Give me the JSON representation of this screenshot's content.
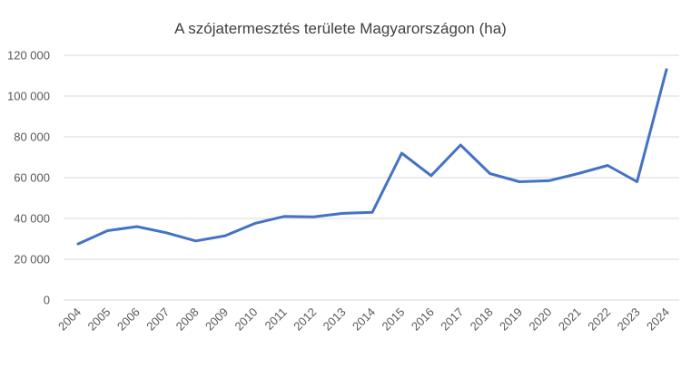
{
  "chart_data": {
    "type": "line",
    "title": "A szójatermesztés területe Magyarországon (ha)",
    "xlabel": "",
    "ylabel": "",
    "ylim": [
      0,
      120000
    ],
    "y_ticks": [
      "0",
      "20 000",
      "40 000",
      "60 000",
      "80 000",
      "100 000",
      "120 000"
    ],
    "y_tick_values": [
      0,
      20000,
      40000,
      60000,
      80000,
      100000,
      120000
    ],
    "grid": true,
    "legend": "none",
    "categories": [
      "2004",
      "2005",
      "2006",
      "2007",
      "2008",
      "2009",
      "2010",
      "2011",
      "2012",
      "2013",
      "2014",
      "2015",
      "2016",
      "2017",
      "2018",
      "2019",
      "2020",
      "2021",
      "2022",
      "2023",
      "2024"
    ],
    "series": [
      {
        "color": "#4472c4",
        "values": [
          27500,
          34000,
          36000,
          33000,
          29000,
          31500,
          37500,
          41000,
          40800,
          42500,
          43000,
          72000,
          61000,
          76000,
          62000,
          58000,
          58500,
          62000,
          66000,
          58000,
          113000
        ]
      }
    ]
  }
}
